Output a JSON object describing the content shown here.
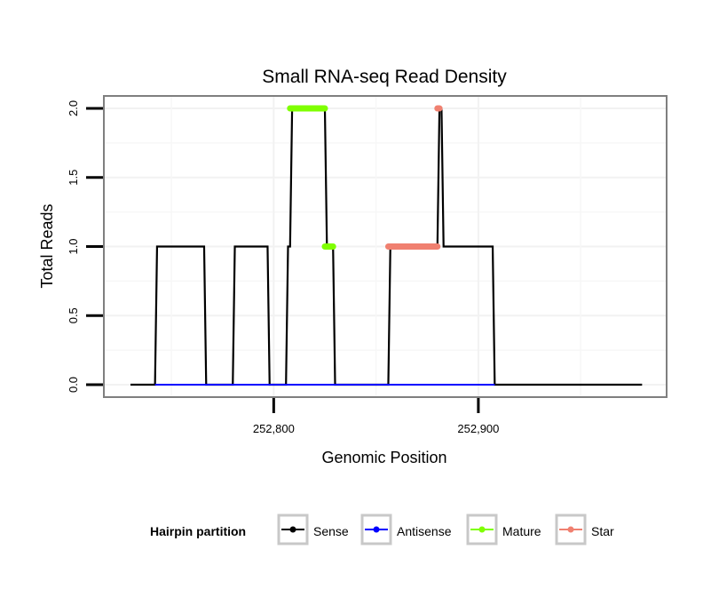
{
  "chart_data": {
    "type": "line",
    "title": "Small RNA-seq Read Density",
    "xlabel": "Genomic Position",
    "ylabel": "Total Reads",
    "xlim": [
      252717,
      252992
    ],
    "ylim": [
      -0.09,
      2.09
    ],
    "x_ticks": [
      {
        "value": 252800,
        "label": "252,800"
      },
      {
        "value": 252900,
        "label": "252,900"
      }
    ],
    "y_ticks": [
      {
        "value": 0,
        "label": "0.0"
      },
      {
        "value": 0.5,
        "label": "0.5"
      },
      {
        "value": 1,
        "label": "1.0"
      },
      {
        "value": 1.5,
        "label": "1.5"
      },
      {
        "value": 2,
        "label": "2.0"
      }
    ],
    "grid": true,
    "legend": {
      "title": "Hairpin partition",
      "position": "bottom",
      "entries": [
        {
          "name": "Sense",
          "color": "#000000"
        },
        {
          "name": "Antisense",
          "color": "#0000ff"
        },
        {
          "name": "Mature",
          "color": "#7fff00"
        },
        {
          "name": "Star",
          "color": "#f08070"
        }
      ]
    },
    "series": [
      {
        "name": "Sense",
        "color": "#000000",
        "x": [
          252730,
          252742,
          252743,
          252766,
          252767,
          252780,
          252781,
          252797,
          252798,
          252806,
          252807,
          252808,
          252809,
          252825,
          252826,
          252829,
          252830,
          252856,
          252857,
          252880,
          252881,
          252882,
          252883,
          252907,
          252908,
          252980
        ],
        "y": [
          0,
          0,
          1,
          1,
          0,
          0,
          1,
          1,
          0,
          0,
          1,
          1,
          2,
          2,
          1,
          1,
          0,
          0,
          1,
          1,
          2,
          2,
          1,
          1,
          0,
          0
        ]
      },
      {
        "name": "Antisense",
        "color": "#0000ff",
        "x": [
          252742,
          252908
        ],
        "y": [
          0,
          0
        ]
      },
      {
        "name": "Mature",
        "color": "#7fff00",
        "segments": [
          {
            "x": [
              252808,
              252825
            ],
            "y": [
              2,
              2
            ]
          },
          {
            "x": [
              252825,
              252829
            ],
            "y": [
              1,
              1
            ]
          }
        ]
      },
      {
        "name": "Star",
        "color": "#f08070",
        "segments": [
          {
            "x": [
              252856,
              252880
            ],
            "y": [
              1,
              1
            ]
          },
          {
            "x": [
              252880,
              252881
            ],
            "y": [
              2,
              2
            ]
          }
        ]
      }
    ]
  }
}
